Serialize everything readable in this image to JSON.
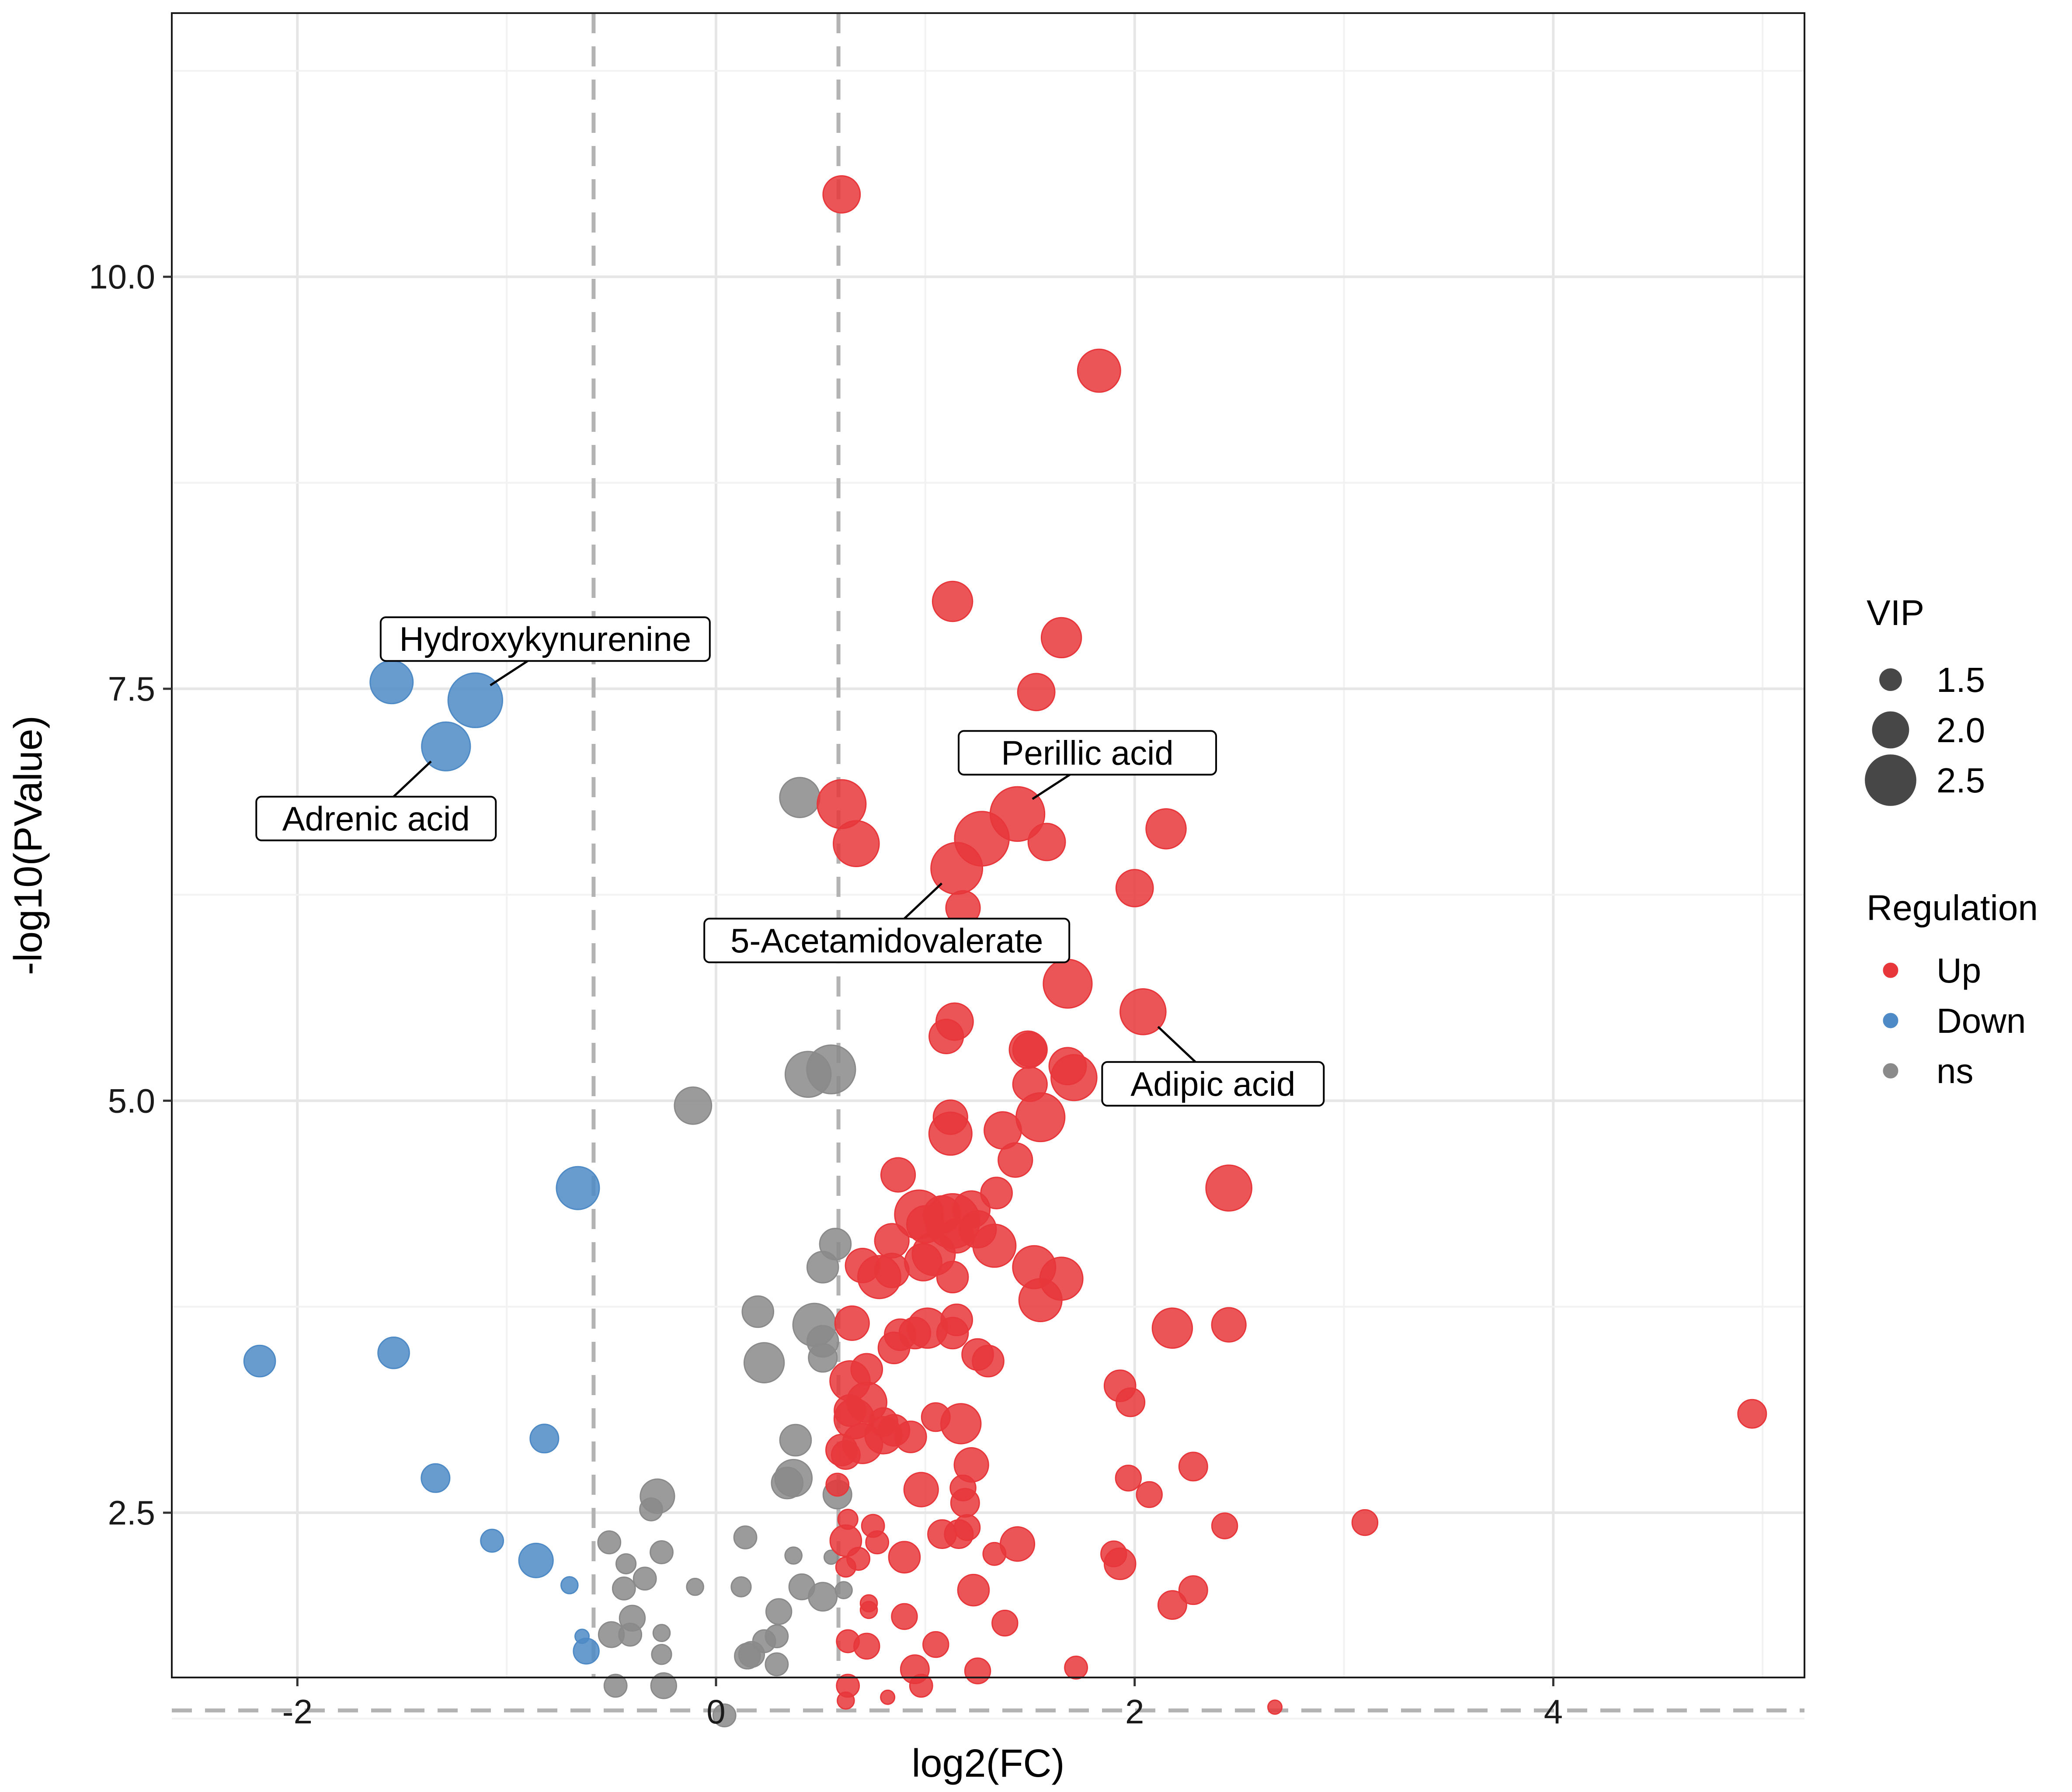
{
  "chart_data": {
    "type": "scatter",
    "title": "",
    "xlabel": "log2(FC)",
    "ylabel": "-log10(PValue)",
    "xlim": [
      -2.6,
      5.2
    ],
    "ylim": [
      1.5,
      11.6
    ],
    "xticks": [
      -2,
      0,
      2,
      4
    ],
    "yticks": [
      2.5,
      5.0,
      7.5,
      10.0
    ],
    "xtick_labels": [
      "-2",
      "0",
      "2",
      "4"
    ],
    "ytick_labels": [
      "2.5",
      "5.0",
      "7.5",
      "10.0"
    ],
    "grid": true,
    "threshold_lines": {
      "x": [
        -0.585,
        0.585
      ],
      "y": [
        1.3
      ]
    },
    "colors": {
      "Up": "#e8373b",
      "Down": "#4e8ac6",
      "ns": "#8a8a8a"
    },
    "legend": {
      "position": "right",
      "size_title": "VIP",
      "size_entries": [
        {
          "label": "1.5",
          "value": 1.5
        },
        {
          "label": "2.0",
          "value": 2.0
        },
        {
          "label": "2.5",
          "value": 2.5
        }
      ],
      "color_title": "Regulation",
      "color_entries": [
        {
          "label": "Up",
          "key": "Up"
        },
        {
          "label": "Down",
          "key": "Down"
        },
        {
          "label": "ns",
          "key": "ns"
        }
      ]
    },
    "annotations": [
      {
        "label": "Hydroxykynurenine",
        "x": -1.15,
        "y": 7.43
      },
      {
        "label": "Adrenic acid",
        "x": -1.29,
        "y": 7.15
      },
      {
        "label": "Perillic acid",
        "x": 1.44,
        "y": 6.74
      },
      {
        "label": "5-Acetamidovalerate",
        "x": 1.15,
        "y": 6.41
      },
      {
        "label": "Adipic acid",
        "x": 2.04,
        "y": 5.54
      }
    ],
    "series": [
      {
        "name": "Up",
        "points": [
          {
            "x": 0.6,
            "y": 10.5,
            "vip": 2.0
          },
          {
            "x": 1.83,
            "y": 9.43,
            "vip": 2.2
          },
          {
            "x": 1.13,
            "y": 8.03,
            "vip": 2.1
          },
          {
            "x": 1.65,
            "y": 7.81,
            "vip": 2.1
          },
          {
            "x": 1.53,
            "y": 7.48,
            "vip": 2.0
          },
          {
            "x": 0.6,
            "y": 6.8,
            "vip": 2.4
          },
          {
            "x": 1.44,
            "y": 6.74,
            "vip": 2.6
          },
          {
            "x": 0.67,
            "y": 6.56,
            "vip": 2.3
          },
          {
            "x": 1.27,
            "y": 6.59,
            "vip": 2.6
          },
          {
            "x": 1.58,
            "y": 6.57,
            "vip": 2.0
          },
          {
            "x": 2.15,
            "y": 6.65,
            "vip": 2.1
          },
          {
            "x": 1.15,
            "y": 6.41,
            "vip": 2.5
          },
          {
            "x": 2.0,
            "y": 6.29,
            "vip": 2.0
          },
          {
            "x": 1.18,
            "y": 6.17,
            "vip": 1.9
          },
          {
            "x": 1.68,
            "y": 5.71,
            "vip": 2.4
          },
          {
            "x": 2.04,
            "y": 5.54,
            "vip": 2.3
          },
          {
            "x": 1.14,
            "y": 5.48,
            "vip": 2.0
          },
          {
            "x": 1.1,
            "y": 5.39,
            "vip": 1.9
          },
          {
            "x": 1.49,
            "y": 5.31,
            "vip": 2.0
          },
          {
            "x": 1.5,
            "y": 5.31,
            "vip": 1.9
          },
          {
            "x": 1.68,
            "y": 5.21,
            "vip": 2.0
          },
          {
            "x": 1.71,
            "y": 5.14,
            "vip": 2.3
          },
          {
            "x": 1.5,
            "y": 5.1,
            "vip": 1.9
          },
          {
            "x": 1.12,
            "y": 4.9,
            "vip": 1.9
          },
          {
            "x": 1.55,
            "y": 4.9,
            "vip": 2.4
          },
          {
            "x": 1.37,
            "y": 4.82,
            "vip": 2.0
          },
          {
            "x": 1.12,
            "y": 4.8,
            "vip": 2.2
          },
          {
            "x": 1.43,
            "y": 4.64,
            "vip": 1.9
          },
          {
            "x": 0.87,
            "y": 4.55,
            "vip": 1.9
          },
          {
            "x": 2.45,
            "y": 4.47,
            "vip": 2.3
          },
          {
            "x": 1.34,
            "y": 4.44,
            "vip": 1.8
          },
          {
            "x": 0.97,
            "y": 4.31,
            "vip": 2.4
          },
          {
            "x": 1.08,
            "y": 4.31,
            "vip": 2.0
          },
          {
            "x": 1.22,
            "y": 4.34,
            "vip": 2.0
          },
          {
            "x": 1.13,
            "y": 4.27,
            "vip": 2.6
          },
          {
            "x": 1.0,
            "y": 4.25,
            "vip": 2.0
          },
          {
            "x": 1.25,
            "y": 4.22,
            "vip": 2.0
          },
          {
            "x": 1.15,
            "y": 4.18,
            "vip": 1.9
          },
          {
            "x": 0.84,
            "y": 4.15,
            "vip": 1.9
          },
          {
            "x": 1.33,
            "y": 4.12,
            "vip": 2.2
          },
          {
            "x": 1.04,
            "y": 4.07,
            "vip": 2.2
          },
          {
            "x": 0.99,
            "y": 4.02,
            "vip": 2.0
          },
          {
            "x": 0.7,
            "y": 4.0,
            "vip": 1.9
          },
          {
            "x": 0.84,
            "y": 3.97,
            "vip": 1.9
          },
          {
            "x": 1.52,
            "y": 3.99,
            "vip": 2.2
          },
          {
            "x": 0.78,
            "y": 3.93,
            "vip": 2.2
          },
          {
            "x": 1.13,
            "y": 3.93,
            "vip": 1.8
          },
          {
            "x": 1.65,
            "y": 3.92,
            "vip": 2.2
          },
          {
            "x": 1.55,
            "y": 3.79,
            "vip": 2.2
          },
          {
            "x": 1.15,
            "y": 3.67,
            "vip": 1.8
          },
          {
            "x": 0.65,
            "y": 3.65,
            "vip": 1.9
          },
          {
            "x": 1.01,
            "y": 3.62,
            "vip": 2.1
          },
          {
            "x": 2.18,
            "y": 3.62,
            "vip": 2.1
          },
          {
            "x": 2.45,
            "y": 3.64,
            "vip": 1.9
          },
          {
            "x": 0.88,
            "y": 3.58,
            "vip": 1.8
          },
          {
            "x": 0.95,
            "y": 3.59,
            "vip": 1.8
          },
          {
            "x": 1.13,
            "y": 3.59,
            "vip": 1.8
          },
          {
            "x": 0.85,
            "y": 3.5,
            "vip": 1.8
          },
          {
            "x": 1.25,
            "y": 3.46,
            "vip": 1.8
          },
          {
            "x": 1.3,
            "y": 3.42,
            "vip": 1.8
          },
          {
            "x": 0.72,
            "y": 3.37,
            "vip": 1.8
          },
          {
            "x": 0.64,
            "y": 3.3,
            "vip": 2.1
          },
          {
            "x": 1.93,
            "y": 3.27,
            "vip": 1.8
          },
          {
            "x": 0.72,
            "y": 3.17,
            "vip": 2.1
          },
          {
            "x": 1.98,
            "y": 3.17,
            "vip": 1.7
          },
          {
            "x": 0.64,
            "y": 3.12,
            "vip": 1.8
          },
          {
            "x": 0.66,
            "y": 3.07,
            "vip": 2.1
          },
          {
            "x": 1.05,
            "y": 3.08,
            "vip": 1.7
          },
          {
            "x": 0.8,
            "y": 3.05,
            "vip": 1.7
          },
          {
            "x": 1.17,
            "y": 3.04,
            "vip": 2.1
          },
          {
            "x": 4.95,
            "y": 3.1,
            "vip": 1.7
          },
          {
            "x": 0.85,
            "y": 3.0,
            "vip": 1.8
          },
          {
            "x": 0.8,
            "y": 2.97,
            "vip": 2.0
          },
          {
            "x": 0.93,
            "y": 2.96,
            "vip": 1.8
          },
          {
            "x": 0.7,
            "y": 2.92,
            "vip": 2.1
          },
          {
            "x": 0.6,
            "y": 2.88,
            "vip": 1.8
          },
          {
            "x": 0.62,
            "y": 2.85,
            "vip": 1.7
          },
          {
            "x": 2.28,
            "y": 2.78,
            "vip": 1.7
          },
          {
            "x": 1.22,
            "y": 2.79,
            "vip": 1.9
          },
          {
            "x": 1.97,
            "y": 2.71,
            "vip": 1.6
          },
          {
            "x": 0.98,
            "y": 2.64,
            "vip": 1.9
          },
          {
            "x": 0.58,
            "y": 2.67,
            "vip": 1.5
          },
          {
            "x": 2.07,
            "y": 2.61,
            "vip": 1.6
          },
          {
            "x": 1.18,
            "y": 2.65,
            "vip": 1.6
          },
          {
            "x": 1.19,
            "y": 2.56,
            "vip": 1.7
          },
          {
            "x": 0.63,
            "y": 2.46,
            "vip": 1.4
          },
          {
            "x": 0.75,
            "y": 2.42,
            "vip": 1.5
          },
          {
            "x": 1.2,
            "y": 2.41,
            "vip": 1.6
          },
          {
            "x": 2.43,
            "y": 2.42,
            "vip": 1.6
          },
          {
            "x": 3.1,
            "y": 2.44,
            "vip": 1.6
          },
          {
            "x": 1.08,
            "y": 2.37,
            "vip": 1.7
          },
          {
            "x": 1.16,
            "y": 2.37,
            "vip": 1.7
          },
          {
            "x": 0.62,
            "y": 2.33,
            "vip": 1.8
          },
          {
            "x": 0.77,
            "y": 2.32,
            "vip": 1.5
          },
          {
            "x": 1.44,
            "y": 2.31,
            "vip": 1.9
          },
          {
            "x": 1.33,
            "y": 2.25,
            "vip": 1.5
          },
          {
            "x": 0.9,
            "y": 2.23,
            "vip": 1.8
          },
          {
            "x": 1.9,
            "y": 2.25,
            "vip": 1.6
          },
          {
            "x": 1.93,
            "y": 2.19,
            "vip": 1.8
          },
          {
            "x": 0.68,
            "y": 2.22,
            "vip": 1.5
          },
          {
            "x": 0.62,
            "y": 2.17,
            "vip": 1.4
          },
          {
            "x": 1.23,
            "y": 2.03,
            "vip": 1.8
          },
          {
            "x": 2.28,
            "y": 2.03,
            "vip": 1.7
          },
          {
            "x": 2.18,
            "y": 1.94,
            "vip": 1.7
          },
          {
            "x": 0.73,
            "y": 1.95,
            "vip": 1.3
          },
          {
            "x": 0.73,
            "y": 1.91,
            "vip": 1.3
          },
          {
            "x": 0.9,
            "y": 1.87,
            "vip": 1.6
          },
          {
            "x": 1.38,
            "y": 1.83,
            "vip": 1.6
          },
          {
            "x": 0.63,
            "y": 1.72,
            "vip": 1.5
          },
          {
            "x": 0.72,
            "y": 1.69,
            "vip": 1.6
          },
          {
            "x": 1.05,
            "y": 1.7,
            "vip": 1.6
          },
          {
            "x": 0.95,
            "y": 1.55,
            "vip": 1.7
          },
          {
            "x": 1.25,
            "y": 1.54,
            "vip": 1.6
          },
          {
            "x": 1.72,
            "y": 1.56,
            "vip": 1.5
          },
          {
            "x": 0.98,
            "y": 1.45,
            "vip": 1.5
          },
          {
            "x": 0.63,
            "y": 1.45,
            "vip": 1.5
          },
          {
            "x": 0.62,
            "y": 1.36,
            "vip": 1.3
          },
          {
            "x": 0.82,
            "y": 1.38,
            "vip": 1.2
          },
          {
            "x": 2.67,
            "y": 1.32,
            "vip": 1.2
          }
        ]
      },
      {
        "name": "Down",
        "points": [
          {
            "x": -1.55,
            "y": 7.54,
            "vip": 2.2
          },
          {
            "x": -1.15,
            "y": 7.43,
            "vip": 2.6
          },
          {
            "x": -1.29,
            "y": 7.15,
            "vip": 2.4
          },
          {
            "x": -0.66,
            "y": 4.47,
            "vip": 2.2
          },
          {
            "x": -2.18,
            "y": 3.42,
            "vip": 1.8
          },
          {
            "x": -1.54,
            "y": 3.47,
            "vip": 1.8
          },
          {
            "x": -0.82,
            "y": 2.95,
            "vip": 1.7
          },
          {
            "x": -1.34,
            "y": 2.71,
            "vip": 1.7
          },
          {
            "x": -1.07,
            "y": 2.33,
            "vip": 1.5
          },
          {
            "x": -0.86,
            "y": 2.21,
            "vip": 1.9
          },
          {
            "x": -0.7,
            "y": 2.06,
            "vip": 1.3
          },
          {
            "x": -0.64,
            "y": 1.75,
            "vip": 1.2
          },
          {
            "x": -0.62,
            "y": 1.66,
            "vip": 1.6
          }
        ]
      },
      {
        "name": "ns",
        "points": [
          {
            "x": 0.4,
            "y": 6.84,
            "vip": 2.1
          },
          {
            "x": 0.55,
            "y": 5.19,
            "vip": 2.4
          },
          {
            "x": 0.44,
            "y": 5.16,
            "vip": 2.3
          },
          {
            "x": -0.11,
            "y": 4.97,
            "vip": 2.0
          },
          {
            "x": 0.57,
            "y": 4.13,
            "vip": 1.8
          },
          {
            "x": 0.51,
            "y": 3.99,
            "vip": 1.8
          },
          {
            "x": 0.2,
            "y": 3.72,
            "vip": 1.8
          },
          {
            "x": 0.47,
            "y": 3.64,
            "vip": 2.2
          },
          {
            "x": 0.51,
            "y": 3.54,
            "vip": 1.8
          },
          {
            "x": 0.51,
            "y": 3.44,
            "vip": 1.7
          },
          {
            "x": 0.23,
            "y": 3.41,
            "vip": 2.1
          },
          {
            "x": 0.38,
            "y": 2.94,
            "vip": 1.8
          },
          {
            "x": 0.37,
            "y": 2.71,
            "vip": 2.0
          },
          {
            "x": 0.34,
            "y": 2.68,
            "vip": 1.8
          },
          {
            "x": 0.58,
            "y": 2.61,
            "vip": 1.7
          },
          {
            "x": -0.28,
            "y": 2.6,
            "vip": 1.9
          },
          {
            "x": -0.31,
            "y": 2.52,
            "vip": 1.5
          },
          {
            "x": 0.14,
            "y": 2.35,
            "vip": 1.5
          },
          {
            "x": -0.51,
            "y": 2.32,
            "vip": 1.5
          },
          {
            "x": -0.26,
            "y": 2.26,
            "vip": 1.5
          },
          {
            "x": 0.37,
            "y": 2.24,
            "vip": 1.3
          },
          {
            "x": 0.55,
            "y": 2.23,
            "vip": 1.2
          },
          {
            "x": -0.43,
            "y": 2.19,
            "vip": 1.4
          },
          {
            "x": -0.34,
            "y": 2.1,
            "vip": 1.5
          },
          {
            "x": 0.41,
            "y": 2.05,
            "vip": 1.6
          },
          {
            "x": -0.1,
            "y": 2.05,
            "vip": 1.3
          },
          {
            "x": 0.12,
            "y": 2.05,
            "vip": 1.4
          },
          {
            "x": -0.44,
            "y": 2.04,
            "vip": 1.5
          },
          {
            "x": 0.61,
            "y": 2.03,
            "vip": 1.3
          },
          {
            "x": 0.51,
            "y": 1.99,
            "vip": 1.7
          },
          {
            "x": 0.3,
            "y": 1.9,
            "vip": 1.6
          },
          {
            "x": -0.4,
            "y": 1.86,
            "vip": 1.6
          },
          {
            "x": -0.5,
            "y": 1.76,
            "vip": 1.6
          },
          {
            "x": -0.41,
            "y": 1.76,
            "vip": 1.5
          },
          {
            "x": -0.26,
            "y": 1.77,
            "vip": 1.3
          },
          {
            "x": 0.23,
            "y": 1.72,
            "vip": 1.5
          },
          {
            "x": 0.29,
            "y": 1.75,
            "vip": 1.5
          },
          {
            "x": 0.17,
            "y": 1.64,
            "vip": 1.6
          },
          {
            "x": 0.15,
            "y": 1.63,
            "vip": 1.6
          },
          {
            "x": -0.26,
            "y": 1.64,
            "vip": 1.4
          },
          {
            "x": 0.29,
            "y": 1.58,
            "vip": 1.5
          },
          {
            "x": -0.48,
            "y": 1.45,
            "vip": 1.5
          },
          {
            "x": -0.25,
            "y": 1.45,
            "vip": 1.6
          },
          {
            "x": 0.04,
            "y": 1.27,
            "vip": 1.5
          }
        ]
      }
    ]
  }
}
